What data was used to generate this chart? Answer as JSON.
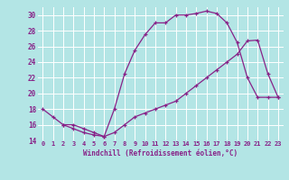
{
  "xlabel": "Windchill (Refroidissement éolien,°C)",
  "bg_color": "#b3e5e5",
  "grid_color": "#ffffff",
  "line_color": "#882288",
  "xlim": [
    -0.5,
    23.5
  ],
  "ylim": [
    14,
    31
  ],
  "xtick_labels": [
    "0",
    "1",
    "2",
    "3",
    "4",
    "5",
    "6",
    "7",
    "8",
    "9",
    "10",
    "11",
    "12",
    "13",
    "14",
    "15",
    "16",
    "17",
    "18",
    "19",
    "20",
    "21",
    "22",
    "23"
  ],
  "xtick_vals": [
    0,
    1,
    2,
    3,
    4,
    5,
    6,
    7,
    8,
    9,
    10,
    11,
    12,
    13,
    14,
    15,
    16,
    17,
    18,
    19,
    20,
    21,
    22,
    23
  ],
  "ytick_vals": [
    14,
    16,
    18,
    20,
    22,
    24,
    26,
    28,
    30
  ],
  "curve1_x": [
    0,
    1,
    2,
    3,
    4,
    5,
    6,
    7,
    8,
    9,
    10,
    11,
    12,
    13,
    14,
    15,
    16,
    17,
    18,
    19,
    20,
    21,
    22,
    23
  ],
  "curve1_y": [
    18,
    17,
    16,
    15.5,
    15,
    14.7,
    14.5,
    18.0,
    22.5,
    25.5,
    27.5,
    29.0,
    29.0,
    30.0,
    30.0,
    30.2,
    30.5,
    30.2,
    29.0,
    26.5,
    22.0,
    19.5,
    19.5,
    19.5
  ],
  "curve2_x": [
    2,
    3,
    4,
    5,
    6,
    7,
    8,
    9,
    10,
    11,
    12,
    13,
    14,
    15,
    16,
    17,
    18,
    19,
    20,
    21,
    22,
    23
  ],
  "curve2_y": [
    16.0,
    16.0,
    15.5,
    15.0,
    14.5,
    15.0,
    16.0,
    17.0,
    17.5,
    18.0,
    18.5,
    19.0,
    20.0,
    21.0,
    22.0,
    23.0,
    24.0,
    25.0,
    26.7,
    26.8,
    22.5,
    19.5
  ]
}
